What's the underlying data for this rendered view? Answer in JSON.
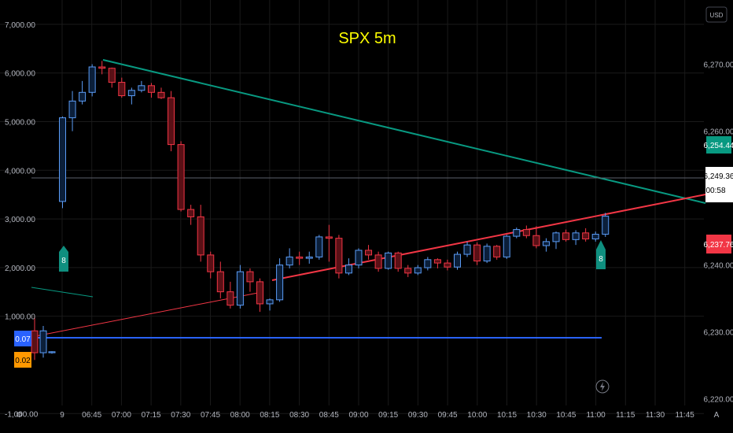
{
  "chart_data": {
    "type": "candlestick",
    "title": "SPX 5m",
    "currency": "USD",
    "x_labels": [
      "9",
      "06:45",
      "07:00",
      "07:15",
      "07:30",
      "07:45",
      "08:00",
      "08:15",
      "08:30",
      "08:45",
      "09:00",
      "09:15",
      "09:30",
      "09:45",
      "10:00",
      "10:15",
      "10:30",
      "10:45",
      "11:00",
      "11:15",
      "11:30",
      "11:45"
    ],
    "right_axis": {
      "ticks": [
        "6,270.00",
        "6,260.00",
        "6,240.00",
        "6,230.00",
        "6,220.00"
      ],
      "range": [
        6214.9,
        6279.6
      ]
    },
    "left_axis": {
      "ticks": [
        "7,000.00",
        "6,000.00",
        "5,000.00",
        "4,000.00",
        "3,000.00",
        "2,000.00",
        "1,000.00",
        "-1,000.00"
      ],
      "range": [
        -1400,
        7500
      ]
    },
    "price_tags": [
      {
        "label": "6,254.44",
        "color": "#089981",
        "text_color": "#ffffff"
      },
      {
        "label": "6,249.36",
        "sub": "00:58",
        "color": "#ffffff",
        "text_color": "#000000"
      },
      {
        "label": "6,237.76",
        "color": "#f23645",
        "text_color": "#ffffff"
      }
    ],
    "left_tags": [
      {
        "label": "0.07",
        "color": "#2962ff",
        "text_color": "#ffffff"
      },
      {
        "label": "0.02",
        "color": "#ff9800",
        "text_color": "#000000"
      }
    ],
    "markers": [
      "8",
      "8"
    ],
    "candles": [
      [
        6249.5,
        6262.2,
        6248.5,
        6262.0
      ],
      [
        6262.0,
        6266.0,
        6260.0,
        6264.5
      ],
      [
        6264.5,
        6267.5,
        6264.0,
        6265.8
      ],
      [
        6265.8,
        6270.0,
        6265.2,
        6269.6
      ],
      [
        6269.6,
        6270.5,
        6268.5,
        6269.4
      ],
      [
        6269.4,
        6269.5,
        6266.5,
        6267.3
      ],
      [
        6267.3,
        6268.0,
        6265.0,
        6265.3
      ],
      [
        6265.3,
        6266.5,
        6264.0,
        6266.1
      ],
      [
        6266.1,
        6267.5,
        6265.8,
        6266.8
      ],
      [
        6266.8,
        6267.2,
        6265.0,
        6265.8
      ],
      [
        6265.8,
        6266.5,
        6264.8,
        6265.0
      ],
      [
        6265.0,
        6266.0,
        6257.0,
        6258.0
      ],
      [
        6258.0,
        6258.5,
        6248.0,
        6248.3
      ],
      [
        6248.3,
        6249.0,
        6246.0,
        6247.2
      ],
      [
        6247.2,
        6249.0,
        6240.5,
        6241.5
      ],
      [
        6241.5,
        6242.0,
        6238.0,
        6239.0
      ],
      [
        6239.0,
        6240.5,
        6235.0,
        6236.0
      ],
      [
        6236.0,
        6237.5,
        6233.5,
        6234.0
      ],
      [
        6234.0,
        6240.0,
        6233.5,
        6239.0
      ],
      [
        6239.0,
        6239.5,
        6236.0,
        6237.5
      ],
      [
        6237.5,
        6238.0,
        6233.0,
        6234.2
      ],
      [
        6234.2,
        6235.0,
        6233.2,
        6234.8
      ],
      [
        6234.8,
        6241.0,
        6234.5,
        6240.0
      ],
      [
        6240.0,
        6242.5,
        6239.5,
        6241.2
      ],
      [
        6241.2,
        6242.0,
        6240.0,
        6241.0
      ],
      [
        6241.0,
        6242.0,
        6240.2,
        6241.2
      ],
      [
        6241.2,
        6244.5,
        6240.8,
        6244.2
      ],
      [
        6244.2,
        6246.0,
        6240.5,
        6244.0
      ],
      [
        6244.0,
        6244.5,
        6238.0,
        6238.8
      ],
      [
        6238.8,
        6241.0,
        6238.5,
        6240.0
      ],
      [
        6240.0,
        6242.5,
        6239.5,
        6242.2
      ],
      [
        6242.2,
        6243.0,
        6240.8,
        6241.5
      ],
      [
        6241.5,
        6242.0,
        6239.0,
        6239.5
      ],
      [
        6239.5,
        6242.0,
        6239.3,
        6241.8
      ],
      [
        6241.8,
        6242.0,
        6239.0,
        6239.5
      ],
      [
        6239.5,
        6240.0,
        6238.2,
        6238.8
      ],
      [
        6238.8,
        6240.0,
        6238.5,
        6239.6
      ],
      [
        6239.6,
        6241.2,
        6239.2,
        6240.8
      ],
      [
        6240.8,
        6241.0,
        6239.5,
        6240.3
      ],
      [
        6240.3,
        6240.8,
        6239.2,
        6239.7
      ],
      [
        6239.7,
        6242.0,
        6239.3,
        6241.6
      ],
      [
        6241.6,
        6243.5,
        6241.2,
        6243.0
      ],
      [
        6243.0,
        6243.4,
        6240.0,
        6240.6
      ],
      [
        6240.6,
        6243.2,
        6240.3,
        6242.8
      ],
      [
        6242.8,
        6243.0,
        6240.8,
        6241.2
      ],
      [
        6241.2,
        6244.5,
        6240.9,
        6244.3
      ],
      [
        6244.3,
        6245.6,
        6244.0,
        6245.3
      ],
      [
        6245.3,
        6245.9,
        6244.0,
        6244.4
      ],
      [
        6244.4,
        6245.8,
        6242.5,
        6242.9
      ],
      [
        6242.9,
        6244.0,
        6242.0,
        6243.5
      ],
      [
        6243.5,
        6245.0,
        6242.4,
        6244.8
      ],
      [
        6244.8,
        6245.3,
        6243.5,
        6243.8
      ],
      [
        6243.8,
        6245.2,
        6243.0,
        6244.8
      ],
      [
        6244.8,
        6245.5,
        6243.5,
        6243.9
      ],
      [
        6243.9,
        6245.0,
        6243.5,
        6244.6
      ],
      [
        6244.6,
        6247.8,
        6244.2,
        6247.3
      ]
    ],
    "left_candles": [
      [
        700,
        1000,
        100,
        250
      ],
      [
        250,
        800,
        150,
        700
      ],
      [
        250,
        280,
        230,
        270
      ]
    ]
  }
}
